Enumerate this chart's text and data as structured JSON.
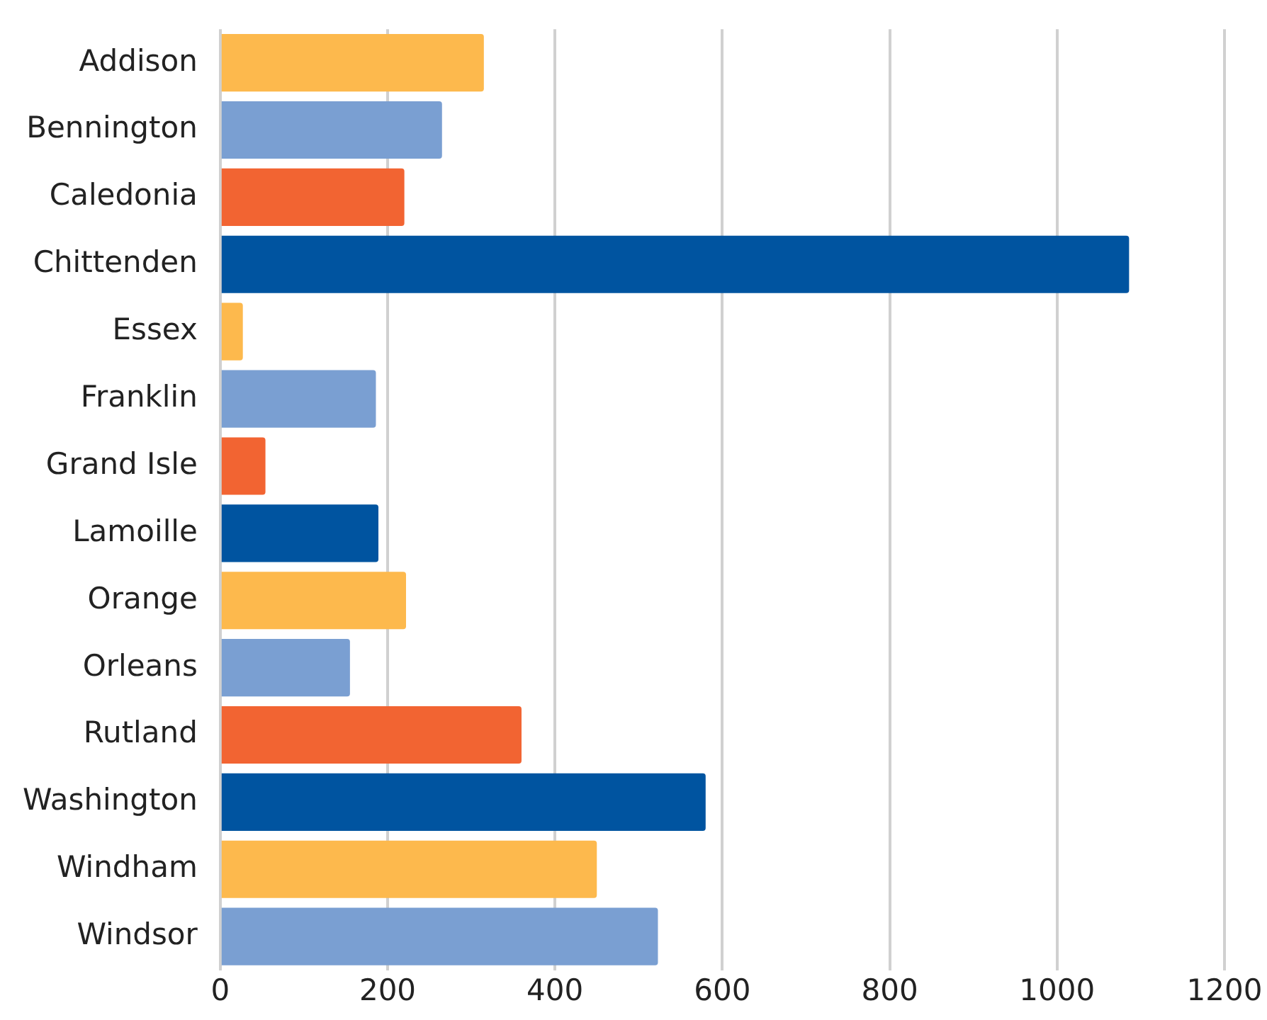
{
  "chart_data": {
    "type": "bar",
    "orientation": "horizontal",
    "categories": [
      "Addison",
      "Bennington",
      "Caledonia",
      "Chittenden",
      "Essex",
      "Franklin",
      "Grand Isle",
      "Lamoille",
      "Orange",
      "Orleans",
      "Rutland",
      "Washington",
      "Windham",
      "Windsor"
    ],
    "values": [
      315,
      265,
      220,
      1086,
      27,
      186,
      54,
      189,
      222,
      155,
      360,
      580,
      450,
      523
    ],
    "colors": [
      "#fdb94d",
      "#7a9fd2",
      "#f26432",
      "#0054a0",
      "#fdb94d",
      "#7a9fd2",
      "#f26432",
      "#0054a0",
      "#fdb94d",
      "#7a9fd2",
      "#f26432",
      "#0054a0",
      "#fdb94d",
      "#7a9fd2"
    ],
    "xlim": [
      0,
      1200
    ],
    "xticks": [
      0,
      200,
      400,
      600,
      800,
      1000,
      1200
    ],
    "grid": "x",
    "legend": false
  }
}
